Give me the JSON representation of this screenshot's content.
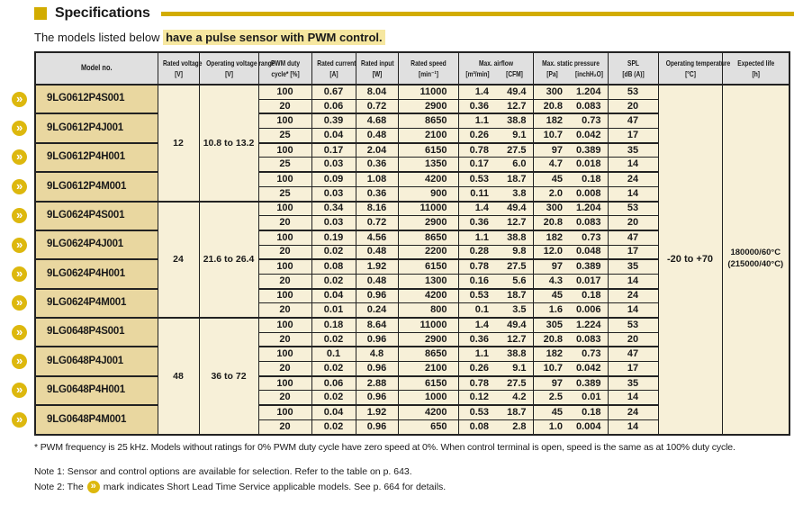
{
  "colors": {
    "gold": "#d2ac00",
    "icon_gold": "#ddb80e",
    "highlight": "#f6e7a0",
    "header_bg": "#e0e0e0",
    "model_bg": "#e9d7a0",
    "cell_bg": "#f7f0d8",
    "border": "#222222"
  },
  "icons": {
    "slt_glyph": "»",
    "slt_meaning": "short-lead-time-mark"
  },
  "page": {
    "title": "Specifications",
    "intro_plain": "The models listed below ",
    "intro_highlight": "have a pulse sensor with PWM control."
  },
  "table": {
    "headers": {
      "model": {
        "label": "Model no."
      },
      "voltage": {
        "label": "Rated voltage",
        "unit": "[V]"
      },
      "range": {
        "label": "Operating voltage range",
        "unit": "[V]"
      },
      "pwm": {
        "label": "PWM duty",
        "unit": "cycle* [%]"
      },
      "current": {
        "label": "Rated current",
        "unit": "[A]"
      },
      "input": {
        "label": "Rated input",
        "unit": "[W]"
      },
      "speed": {
        "label": "Rated speed",
        "unit": "[min⁻¹]"
      },
      "airflow": {
        "label": "Max. airflow",
        "unit1": "[m³/min]",
        "unit2": "[CFM]"
      },
      "pressure": {
        "label": "Max. static pressure",
        "unit1": "[Pa]",
        "unit2": "[inchH₂O]"
      },
      "spl": {
        "label": "SPL",
        "unit": "[dB (A)]"
      },
      "temp": {
        "label": "Operating temperature",
        "unit": "[°C]"
      },
      "life": {
        "label": "Expected life",
        "unit": "[h]"
      }
    },
    "operating_temperature": "-20 to +70",
    "expected_life_1": "180000/60°C",
    "expected_life_2": "(215000/40°C)",
    "groups": [
      {
        "voltage": "12",
        "range": "10.8 to 13.2",
        "models": [
          {
            "name": "9LG0612P4S001",
            "slt": true,
            "rows": [
              [
                "100",
                "0.67",
                "8.04",
                "11000",
                "1.4",
                "49.4",
                "300",
                "1.204",
                "53"
              ],
              [
                "20",
                "0.06",
                "0.72",
                "2900",
                "0.36",
                "12.7",
                "20.8",
                "0.083",
                "20"
              ]
            ]
          },
          {
            "name": "9LG0612P4J001",
            "slt": true,
            "rows": [
              [
                "100",
                "0.39",
                "4.68",
                "8650",
                "1.1",
                "38.8",
                "182",
                "0.73",
                "47"
              ],
              [
                "25",
                "0.04",
                "0.48",
                "2100",
                "0.26",
                "9.1",
                "10.7",
                "0.042",
                "17"
              ]
            ]
          },
          {
            "name": "9LG0612P4H001",
            "slt": true,
            "rows": [
              [
                "100",
                "0.17",
                "2.04",
                "6150",
                "0.78",
                "27.5",
                "97",
                "0.389",
                "35"
              ],
              [
                "25",
                "0.03",
                "0.36",
                "1350",
                "0.17",
                "6.0",
                "4.7",
                "0.018",
                "14"
              ]
            ]
          },
          {
            "name": "9LG0612P4M001",
            "slt": true,
            "rows": [
              [
                "100",
                "0.09",
                "1.08",
                "4200",
                "0.53",
                "18.7",
                "45",
                "0.18",
                "24"
              ],
              [
                "25",
                "0.03",
                "0.36",
                "900",
                "0.11",
                "3.8",
                "2.0",
                "0.008",
                "14"
              ]
            ]
          }
        ]
      },
      {
        "voltage": "24",
        "range": "21.6 to 26.4",
        "models": [
          {
            "name": "9LG0624P4S001",
            "slt": true,
            "rows": [
              [
                "100",
                "0.34",
                "8.16",
                "11000",
                "1.4",
                "49.4",
                "300",
                "1.204",
                "53"
              ],
              [
                "20",
                "0.03",
                "0.72",
                "2900",
                "0.36",
                "12.7",
                "20.8",
                "0.083",
                "20"
              ]
            ]
          },
          {
            "name": "9LG0624P4J001",
            "slt": true,
            "rows": [
              [
                "100",
                "0.19",
                "4.56",
                "8650",
                "1.1",
                "38.8",
                "182",
                "0.73",
                "47"
              ],
              [
                "20",
                "0.02",
                "0.48",
                "2200",
                "0.28",
                "9.8",
                "12.0",
                "0.048",
                "17"
              ]
            ]
          },
          {
            "name": "9LG0624P4H001",
            "slt": true,
            "rows": [
              [
                "100",
                "0.08",
                "1.92",
                "6150",
                "0.78",
                "27.5",
                "97",
                "0.389",
                "35"
              ],
              [
                "20",
                "0.02",
                "0.48",
                "1300",
                "0.16",
                "5.6",
                "4.3",
                "0.017",
                "14"
              ]
            ]
          },
          {
            "name": "9LG0624P4M001",
            "slt": true,
            "rows": [
              [
                "100",
                "0.04",
                "0.96",
                "4200",
                "0.53",
                "18.7",
                "45",
                "0.18",
                "24"
              ],
              [
                "20",
                "0.01",
                "0.24",
                "800",
                "0.1",
                "3.5",
                "1.6",
                "0.006",
                "14"
              ]
            ]
          }
        ]
      },
      {
        "voltage": "48",
        "range": "36 to 72",
        "models": [
          {
            "name": "9LG0648P4S001",
            "slt": true,
            "rows": [
              [
                "100",
                "0.18",
                "8.64",
                "11000",
                "1.4",
                "49.4",
                "305",
                "1.224",
                "53"
              ],
              [
                "20",
                "0.02",
                "0.96",
                "2900",
                "0.36",
                "12.7",
                "20.8",
                "0.083",
                "20"
              ]
            ]
          },
          {
            "name": "9LG0648P4J001",
            "slt": true,
            "rows": [
              [
                "100",
                "0.1",
                "4.8",
                "8650",
                "1.1",
                "38.8",
                "182",
                "0.73",
                "47"
              ],
              [
                "20",
                "0.02",
                "0.96",
                "2100",
                "0.26",
                "9.1",
                "10.7",
                "0.042",
                "17"
              ]
            ]
          },
          {
            "name": "9LG0648P4H001",
            "slt": true,
            "rows": [
              [
                "100",
                "0.06",
                "2.88",
                "6150",
                "0.78",
                "27.5",
                "97",
                "0.389",
                "35"
              ],
              [
                "20",
                "0.02",
                "0.96",
                "1000",
                "0.12",
                "4.2",
                "2.5",
                "0.01",
                "14"
              ]
            ]
          },
          {
            "name": "9LG0648P4M001",
            "slt": true,
            "rows": [
              [
                "100",
                "0.04",
                "1.92",
                "4200",
                "0.53",
                "18.7",
                "45",
                "0.18",
                "24"
              ],
              [
                "20",
                "0.02",
                "0.96",
                "650",
                "0.08",
                "2.8",
                "1.0",
                "0.004",
                "14"
              ]
            ]
          }
        ]
      }
    ]
  },
  "footnotes": {
    "asterisk": "* PWM frequency is 25 kHz. Models without ratings for 0% PWM duty cycle have zero speed at 0%. When control terminal is open, speed is the same as at 100% duty cycle.",
    "note1": "Note 1: Sensor and control options are available for selection. Refer to the table on p. 643.",
    "note2_before": "Note 2: The",
    "note2_after": "mark indicates Short Lead Time Service applicable models. See p. 664 for details."
  }
}
